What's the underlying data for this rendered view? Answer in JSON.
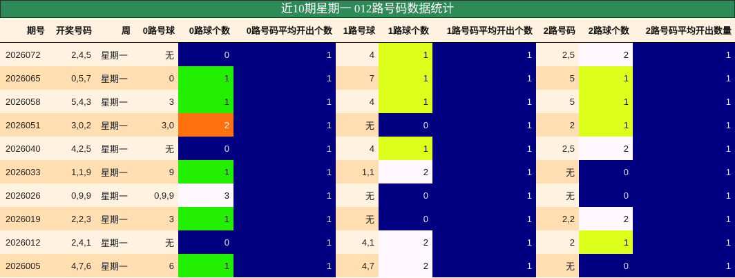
{
  "title": "近10期星期一 012路号码数据统计",
  "colors": {
    "title_bg": "#2e8b57",
    "navy": "#000080",
    "green": "#22ee00",
    "lime": "#ddff1c",
    "orange": "#ff700e",
    "white": "#fff8ff",
    "row_light": "#fff2e1",
    "row_dark": "#ffdfb2"
  },
  "headers": [
    "期号",
    "开奖号码",
    "周",
    "0路号球",
    "0路球个数",
    "0路号码平均开出个数",
    "1路号球",
    "1路球个数",
    "1路号码平均开出个数",
    "2路号码",
    "2路球个数",
    "2路号码平均开出数量"
  ],
  "rows": [
    {
      "cells": [
        "2026072",
        "2,4,5",
        "星期一",
        "无",
        "0",
        "1",
        "4",
        "1",
        "1",
        "2,5",
        "2",
        "1"
      ],
      "hl": [
        "navy",
        "lime",
        "white"
      ]
    },
    {
      "cells": [
        "2026065",
        "0,5,7",
        "星期一",
        "0",
        "1",
        "1",
        "7",
        "1",
        "1",
        "5",
        "1",
        "1"
      ],
      "hl": [
        "green",
        "lime",
        "lime"
      ]
    },
    {
      "cells": [
        "2026058",
        "5,4,3",
        "星期一",
        "3",
        "1",
        "1",
        "4",
        "1",
        "1",
        "5",
        "1",
        "1"
      ],
      "hl": [
        "green",
        "lime",
        "lime"
      ]
    },
    {
      "cells": [
        "2026051",
        "3,0,2",
        "星期一",
        "3,0",
        "2",
        "1",
        "无",
        "0",
        "1",
        "2",
        "1",
        "1"
      ],
      "hl": [
        "orange",
        "navy",
        "lime"
      ]
    },
    {
      "cells": [
        "2026040",
        "4,2,5",
        "星期一",
        "无",
        "0",
        "1",
        "4",
        "1",
        "1",
        "2,5",
        "2",
        "1"
      ],
      "hl": [
        "navy",
        "lime",
        "white"
      ]
    },
    {
      "cells": [
        "2026033",
        "1,1,9",
        "星期一",
        "9",
        "1",
        "1",
        "1,1",
        "2",
        "1",
        "无",
        "0",
        "1"
      ],
      "hl": [
        "green",
        "white",
        "navy"
      ]
    },
    {
      "cells": [
        "2026026",
        "0,9,9",
        "星期一",
        "0,9,9",
        "3",
        "1",
        "无",
        "0",
        "1",
        "无",
        "0",
        "1"
      ],
      "hl": [
        "white",
        "navy",
        "navy"
      ]
    },
    {
      "cells": [
        "2026019",
        "2,2,3",
        "星期一",
        "3",
        "1",
        "1",
        "无",
        "0",
        "1",
        "2,2",
        "2",
        "1"
      ],
      "hl": [
        "green",
        "navy",
        "white"
      ]
    },
    {
      "cells": [
        "2026012",
        "2,4,1",
        "星期一",
        "无",
        "0",
        "1",
        "4,1",
        "2",
        "1",
        "2",
        "1",
        "1"
      ],
      "hl": [
        "navy",
        "white",
        "lime"
      ]
    },
    {
      "cells": [
        "2026005",
        "4,7,6",
        "星期一",
        "6",
        "1",
        "1",
        "4,7",
        "2",
        "1",
        "无",
        "0",
        "1"
      ],
      "hl": [
        "green",
        "white",
        "navy"
      ]
    }
  ]
}
